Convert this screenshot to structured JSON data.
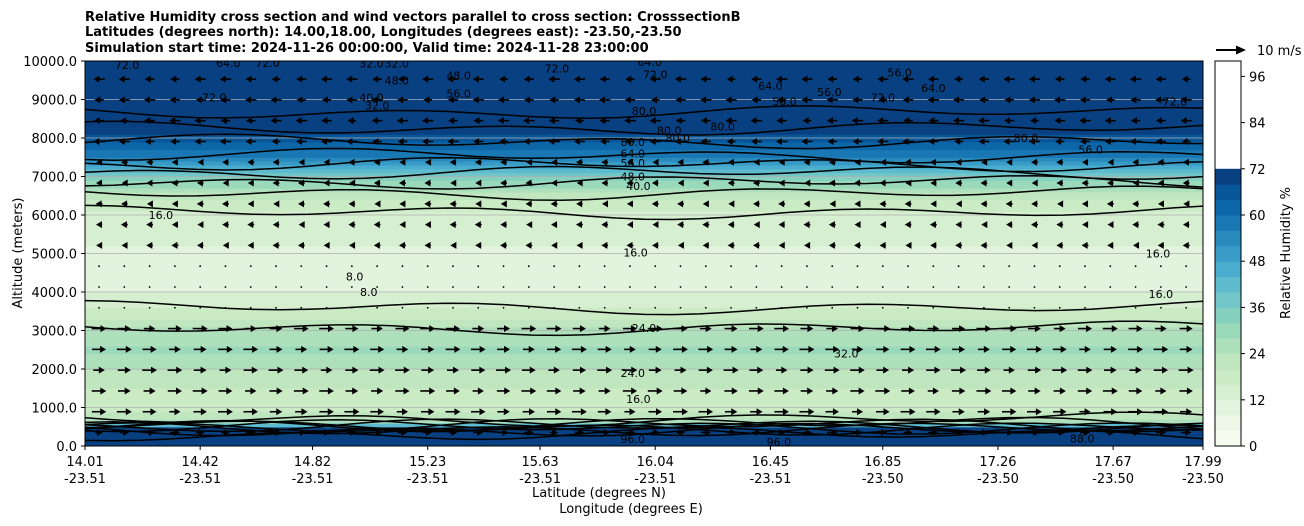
{
  "title_lines": [
    "Relative Humidity cross section and wind vectors parallel to cross section: CrosssectionB",
    "Latitudes (degrees north): 14.00,18.00, Longitudes (degrees east): -23.50,-23.50",
    "Simulation start time: 2024-11-26 00:00:00, Valid time: 2024-11-28 23:00:00"
  ],
  "chart_data": {
    "type": "heatmap",
    "ylabel": "Altitude (meters)",
    "xlabel_lines": [
      "Latitude (degrees N)",
      "Longitude (degrees E)"
    ],
    "ylim": [
      0,
      10000
    ],
    "y_ticks": [
      "0.0",
      "1000.0",
      "2000.0",
      "3000.0",
      "4000.0",
      "5000.0",
      "6000.0",
      "7000.0",
      "8000.0",
      "9000.0",
      "10000.0"
    ],
    "y_tick_values": [
      0,
      1000,
      2000,
      3000,
      4000,
      5000,
      6000,
      7000,
      8000,
      9000,
      10000
    ],
    "x_ticks": [
      {
        "lat": "14.01",
        "lon": "-23.51"
      },
      {
        "lat": "14.42",
        "lon": "-23.51"
      },
      {
        "lat": "14.82",
        "lon": "-23.51"
      },
      {
        "lat": "15.23",
        "lon": "-23.51"
      },
      {
        "lat": "15.63",
        "lon": "-23.51"
      },
      {
        "lat": "16.04",
        "lon": "-23.51"
      },
      {
        "lat": "16.45",
        "lon": "-23.51"
      },
      {
        "lat": "16.85",
        "lon": "-23.50"
      },
      {
        "lat": "17.26",
        "lon": "-23.50"
      },
      {
        "lat": "17.67",
        "lon": "-23.50"
      },
      {
        "lat": "17.99",
        "lon": "-23.50"
      }
    ],
    "x_range_lat": [
      14.01,
      17.99
    ],
    "grid": "horizontal",
    "colorbar": {
      "label": "Relative Humidity %",
      "tick_labels": [
        "0",
        "12",
        "24",
        "36",
        "48",
        "60",
        "72",
        "84",
        "96"
      ],
      "tick_values": [
        0,
        12,
        24,
        36,
        48,
        60,
        72,
        84,
        96
      ],
      "levels_step": 4,
      "max": 100,
      "colors": [
        "#f7fcf0",
        "#eef8e8",
        "#e2f4dd",
        "#d6efd0",
        "#cbebc5",
        "#bfe6bf",
        "#aee0bc",
        "#9bd9bb",
        "#86d0c0",
        "#72c6c7",
        "#5dbbcd",
        "#4aadd0",
        "#389cc7",
        "#288abd",
        "#1978b4",
        "#0c66a8",
        "#08569a",
        "#084081"
      ]
    },
    "quiver_key": {
      "label": "10 m/s",
      "speed": 10
    },
    "rh_profile": [
      {
        "alt": 0,
        "rh": 96
      },
      {
        "alt": 200,
        "rh": 92
      },
      {
        "alt": 400,
        "rh": 84
      },
      {
        "alt": 600,
        "rh": 26
      },
      {
        "alt": 1000,
        "rh": 18
      },
      {
        "alt": 1500,
        "rh": 20
      },
      {
        "alt": 2000,
        "rh": 24
      },
      {
        "alt": 2500,
        "rh": 29
      },
      {
        "alt": 3000,
        "rh": 25
      },
      {
        "alt": 3500,
        "rh": 17
      },
      {
        "alt": 4000,
        "rh": 12
      },
      {
        "alt": 4500,
        "rh": 8
      },
      {
        "alt": 5000,
        "rh": 11
      },
      {
        "alt": 5500,
        "rh": 13
      },
      {
        "alt": 6000,
        "rh": 15
      },
      {
        "alt": 6500,
        "rh": 22
      },
      {
        "alt": 7000,
        "rh": 36
      },
      {
        "alt": 7500,
        "rh": 55
      },
      {
        "alt": 8000,
        "rh": 66
      },
      {
        "alt": 8500,
        "rh": 78
      },
      {
        "alt": 9000,
        "rh": 84
      },
      {
        "alt": 9500,
        "rh": 80
      },
      {
        "alt": 10000,
        "rh": 88
      }
    ],
    "contour_labels": [
      {
        "text": "72.0",
        "lat": 14.16,
        "alt": 9900
      },
      {
        "text": "64.0",
        "lat": 14.52,
        "alt": 9950
      },
      {
        "text": "72.0",
        "lat": 14.66,
        "alt": 9950
      },
      {
        "text": "72.0",
        "lat": 14.47,
        "alt": 9050
      },
      {
        "text": "32.0",
        "lat": 15.03,
        "alt": 9930
      },
      {
        "text": "32.0",
        "lat": 15.12,
        "alt": 9930
      },
      {
        "text": "40.0",
        "lat": 15.03,
        "alt": 9050
      },
      {
        "text": "32.0",
        "lat": 15.05,
        "alt": 8850
      },
      {
        "text": "48.0",
        "lat": 15.12,
        "alt": 9500
      },
      {
        "text": "48.0",
        "lat": 15.34,
        "alt": 9620
      },
      {
        "text": "56.0",
        "lat": 15.34,
        "alt": 9150
      },
      {
        "text": "72.0",
        "lat": 15.69,
        "alt": 9800
      },
      {
        "text": "64.0",
        "lat": 16.02,
        "alt": 9970
      },
      {
        "text": "72.0",
        "lat": 16.04,
        "alt": 9650
      },
      {
        "text": "80.0",
        "lat": 16.0,
        "alt": 8700
      },
      {
        "text": "80.0",
        "lat": 16.09,
        "alt": 8200
      },
      {
        "text": "80.0",
        "lat": 16.12,
        "alt": 8000
      },
      {
        "text": "80.0",
        "lat": 16.28,
        "alt": 8300
      },
      {
        "text": "80.0",
        "lat": 15.96,
        "alt": 7900
      },
      {
        "text": "64.0",
        "lat": 15.96,
        "alt": 7600
      },
      {
        "text": "56.0",
        "lat": 15.96,
        "alt": 7350
      },
      {
        "text": "48.0",
        "lat": 15.96,
        "alt": 7000
      },
      {
        "text": "40.0",
        "lat": 15.98,
        "alt": 6750
      },
      {
        "text": "16.0",
        "lat": 14.28,
        "alt": 6000
      },
      {
        "text": "16.0",
        "lat": 15.97,
        "alt": 5020
      },
      {
        "text": "8.0",
        "lat": 14.97,
        "alt": 4400
      },
      {
        "text": "8.0",
        "lat": 15.02,
        "alt": 4000
      },
      {
        "text": "24.0",
        "lat": 16.0,
        "alt": 3070
      },
      {
        "text": "24.0",
        "lat": 15.96,
        "alt": 1900
      },
      {
        "text": "16.0",
        "lat": 15.98,
        "alt": 1220
      },
      {
        "text": "32.0",
        "lat": 16.72,
        "alt": 2400
      },
      {
        "text": "16.0",
        "lat": 17.83,
        "alt": 5000
      },
      {
        "text": "16.0",
        "lat": 17.84,
        "alt": 3950
      },
      {
        "text": "56.0",
        "lat": 16.5,
        "alt": 8950
      },
      {
        "text": "64.0",
        "lat": 16.45,
        "alt": 9350
      },
      {
        "text": "56.0",
        "lat": 16.66,
        "alt": 9200
      },
      {
        "text": "72.0",
        "lat": 16.85,
        "alt": 9050
      },
      {
        "text": "56.0",
        "lat": 16.91,
        "alt": 9700
      },
      {
        "text": "64.0",
        "lat": 17.03,
        "alt": 9300
      },
      {
        "text": "72.0",
        "lat": 17.89,
        "alt": 8950
      },
      {
        "text": "80.0",
        "lat": 17.36,
        "alt": 8000
      },
      {
        "text": "56.0",
        "lat": 17.59,
        "alt": 7700
      },
      {
        "text": "96.0",
        "lat": 15.96,
        "alt": 180
      },
      {
        "text": "88.0",
        "lat": 17.56,
        "alt": 200
      },
      {
        "text": "96.0",
        "lat": 16.48,
        "alt": 100
      }
    ]
  }
}
